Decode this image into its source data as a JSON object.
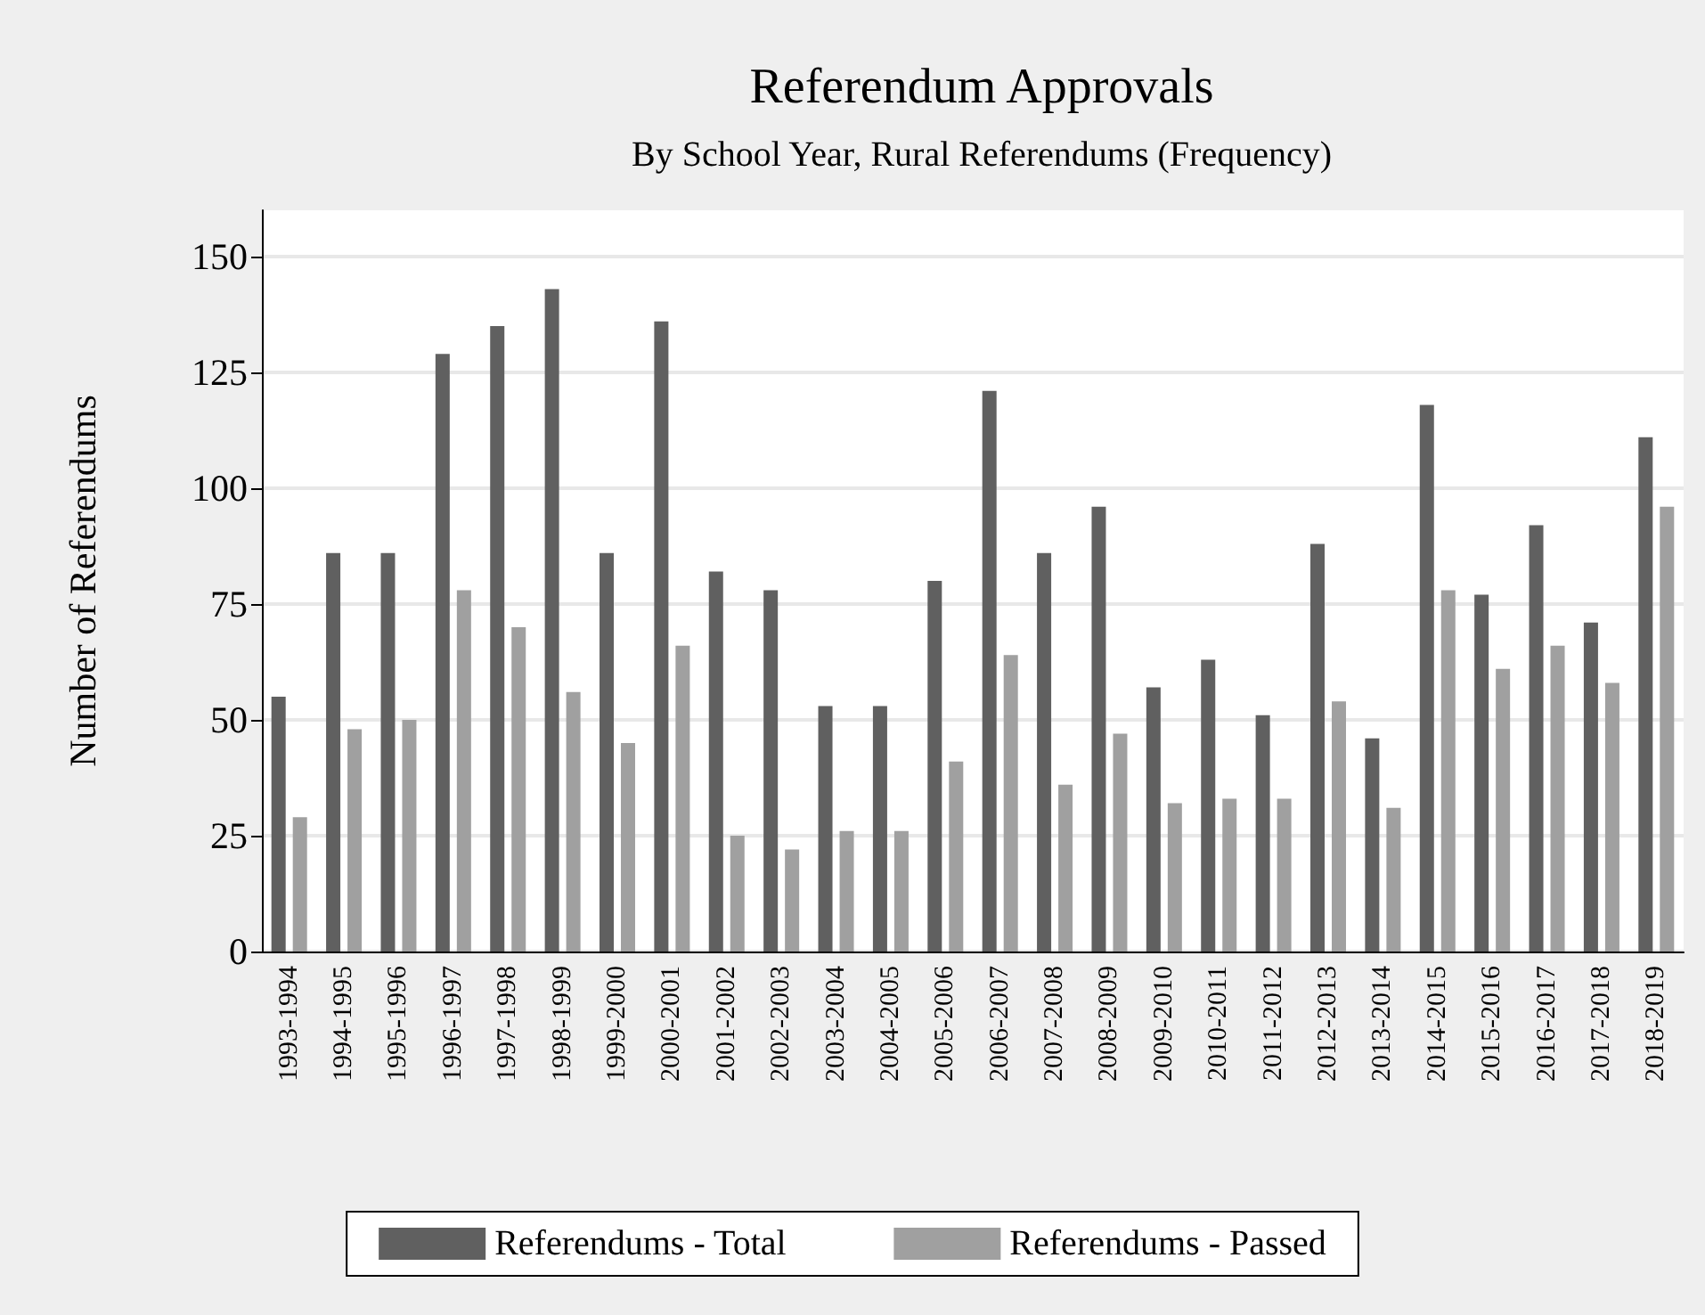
{
  "chart_data": {
    "type": "bar",
    "title": "Referendum Approvals",
    "subtitle": "By School Year, Rural Referendums (Frequency)",
    "ylabel": "Number of Referendums",
    "categories": [
      "1993-1994",
      "1994-1995",
      "1995-1996",
      "1996-1997",
      "1997-1998",
      "1998-1999",
      "1999-2000",
      "2000-2001",
      "2001-2002",
      "2002-2003",
      "2003-2004",
      "2004-2005",
      "2005-2006",
      "2006-2007",
      "2007-2008",
      "2008-2009",
      "2009-2010",
      "2010-2011",
      "2011-2012",
      "2012-2013",
      "2013-2014",
      "2014-2015",
      "2015-2016",
      "2016-2017",
      "2017-2018",
      "2018-2019"
    ],
    "series": [
      {
        "name": "Referendums - Total",
        "color": "#606060",
        "values": [
          55,
          86,
          86,
          129,
          135,
          143,
          86,
          136,
          82,
          78,
          53,
          53,
          80,
          121,
          86,
          96,
          57,
          63,
          51,
          88,
          46,
          118,
          77,
          92,
          71,
          111
        ]
      },
      {
        "name": "Referendums - Passed",
        "color": "#a0a0a0",
        "values": [
          29,
          48,
          50,
          78,
          70,
          56,
          45,
          66,
          25,
          22,
          26,
          26,
          41,
          64,
          36,
          47,
          32,
          33,
          33,
          54,
          31,
          78,
          61,
          66,
          58,
          96
        ]
      }
    ],
    "ylim": [
      0,
      160
    ],
    "yticks": [
      0,
      25,
      50,
      75,
      100,
      125,
      150
    ],
    "grid": "y",
    "legend": "bottom"
  }
}
